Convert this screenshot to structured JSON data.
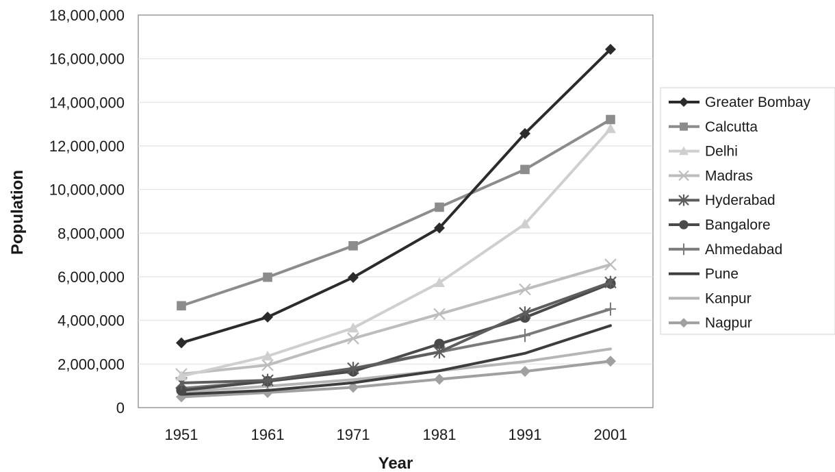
{
  "chart_data": {
    "type": "line",
    "xlabel": "Year",
    "ylabel": "Population",
    "categories": [
      "1951",
      "1961",
      "1971",
      "1981",
      "1991",
      "2001"
    ],
    "ylim": [
      0,
      18000000
    ],
    "yticks": [
      "0",
      "2,000,000",
      "4,000,000",
      "6,000,000",
      "8,000,000",
      "10,000,000",
      "12,000,000",
      "14,000,000",
      "16,000,000",
      "18,000,000"
    ],
    "grid": true,
    "legend_position": "right",
    "series": [
      {
        "name": "Greater Bombay",
        "color": "#2b2b2b",
        "marker": "diamond",
        "values": [
          2970000,
          4150000,
          5970000,
          8240000,
          12570000,
          16430000
        ]
      },
      {
        "name": "Calcutta",
        "color": "#8c8c8c",
        "marker": "square",
        "values": [
          4670000,
          5980000,
          7420000,
          9190000,
          10920000,
          13210000
        ]
      },
      {
        "name": "Delhi",
        "color": "#cfcfcf",
        "marker": "triangle",
        "values": [
          1440000,
          2360000,
          3650000,
          5730000,
          8420000,
          12790000
        ]
      },
      {
        "name": "Madras",
        "color": "#bdbdbd",
        "marker": "x",
        "values": [
          1540000,
          1950000,
          3170000,
          4290000,
          5420000,
          6560000
        ]
      },
      {
        "name": "Hyderabad",
        "color": "#5e5e5e",
        "marker": "star",
        "values": [
          1130000,
          1250000,
          1800000,
          2550000,
          4340000,
          5740000
        ]
      },
      {
        "name": "Bangalore",
        "color": "#4a4a4a",
        "marker": "circle",
        "values": [
          790000,
          1210000,
          1660000,
          2920000,
          4130000,
          5690000
        ]
      },
      {
        "name": "Ahmedabad",
        "color": "#7a7a7a",
        "marker": "plus",
        "values": [
          880000,
          1210000,
          1750000,
          2550000,
          3310000,
          4520000
        ]
      },
      {
        "name": "Pune",
        "color": "#3d3d3d",
        "marker": "none",
        "values": [
          610000,
          790000,
          1140000,
          1690000,
          2490000,
          3760000
        ]
      },
      {
        "name": "Kanpur",
        "color": "#b5b5b5",
        "marker": "none",
        "values": [
          710000,
          980000,
          1280000,
          1690000,
          2110000,
          2690000
        ]
      },
      {
        "name": "Nagpur",
        "color": "#a0a0a0",
        "marker": "diamond",
        "values": [
          490000,
          690000,
          930000,
          1300000,
          1660000,
          2130000
        ]
      }
    ]
  }
}
